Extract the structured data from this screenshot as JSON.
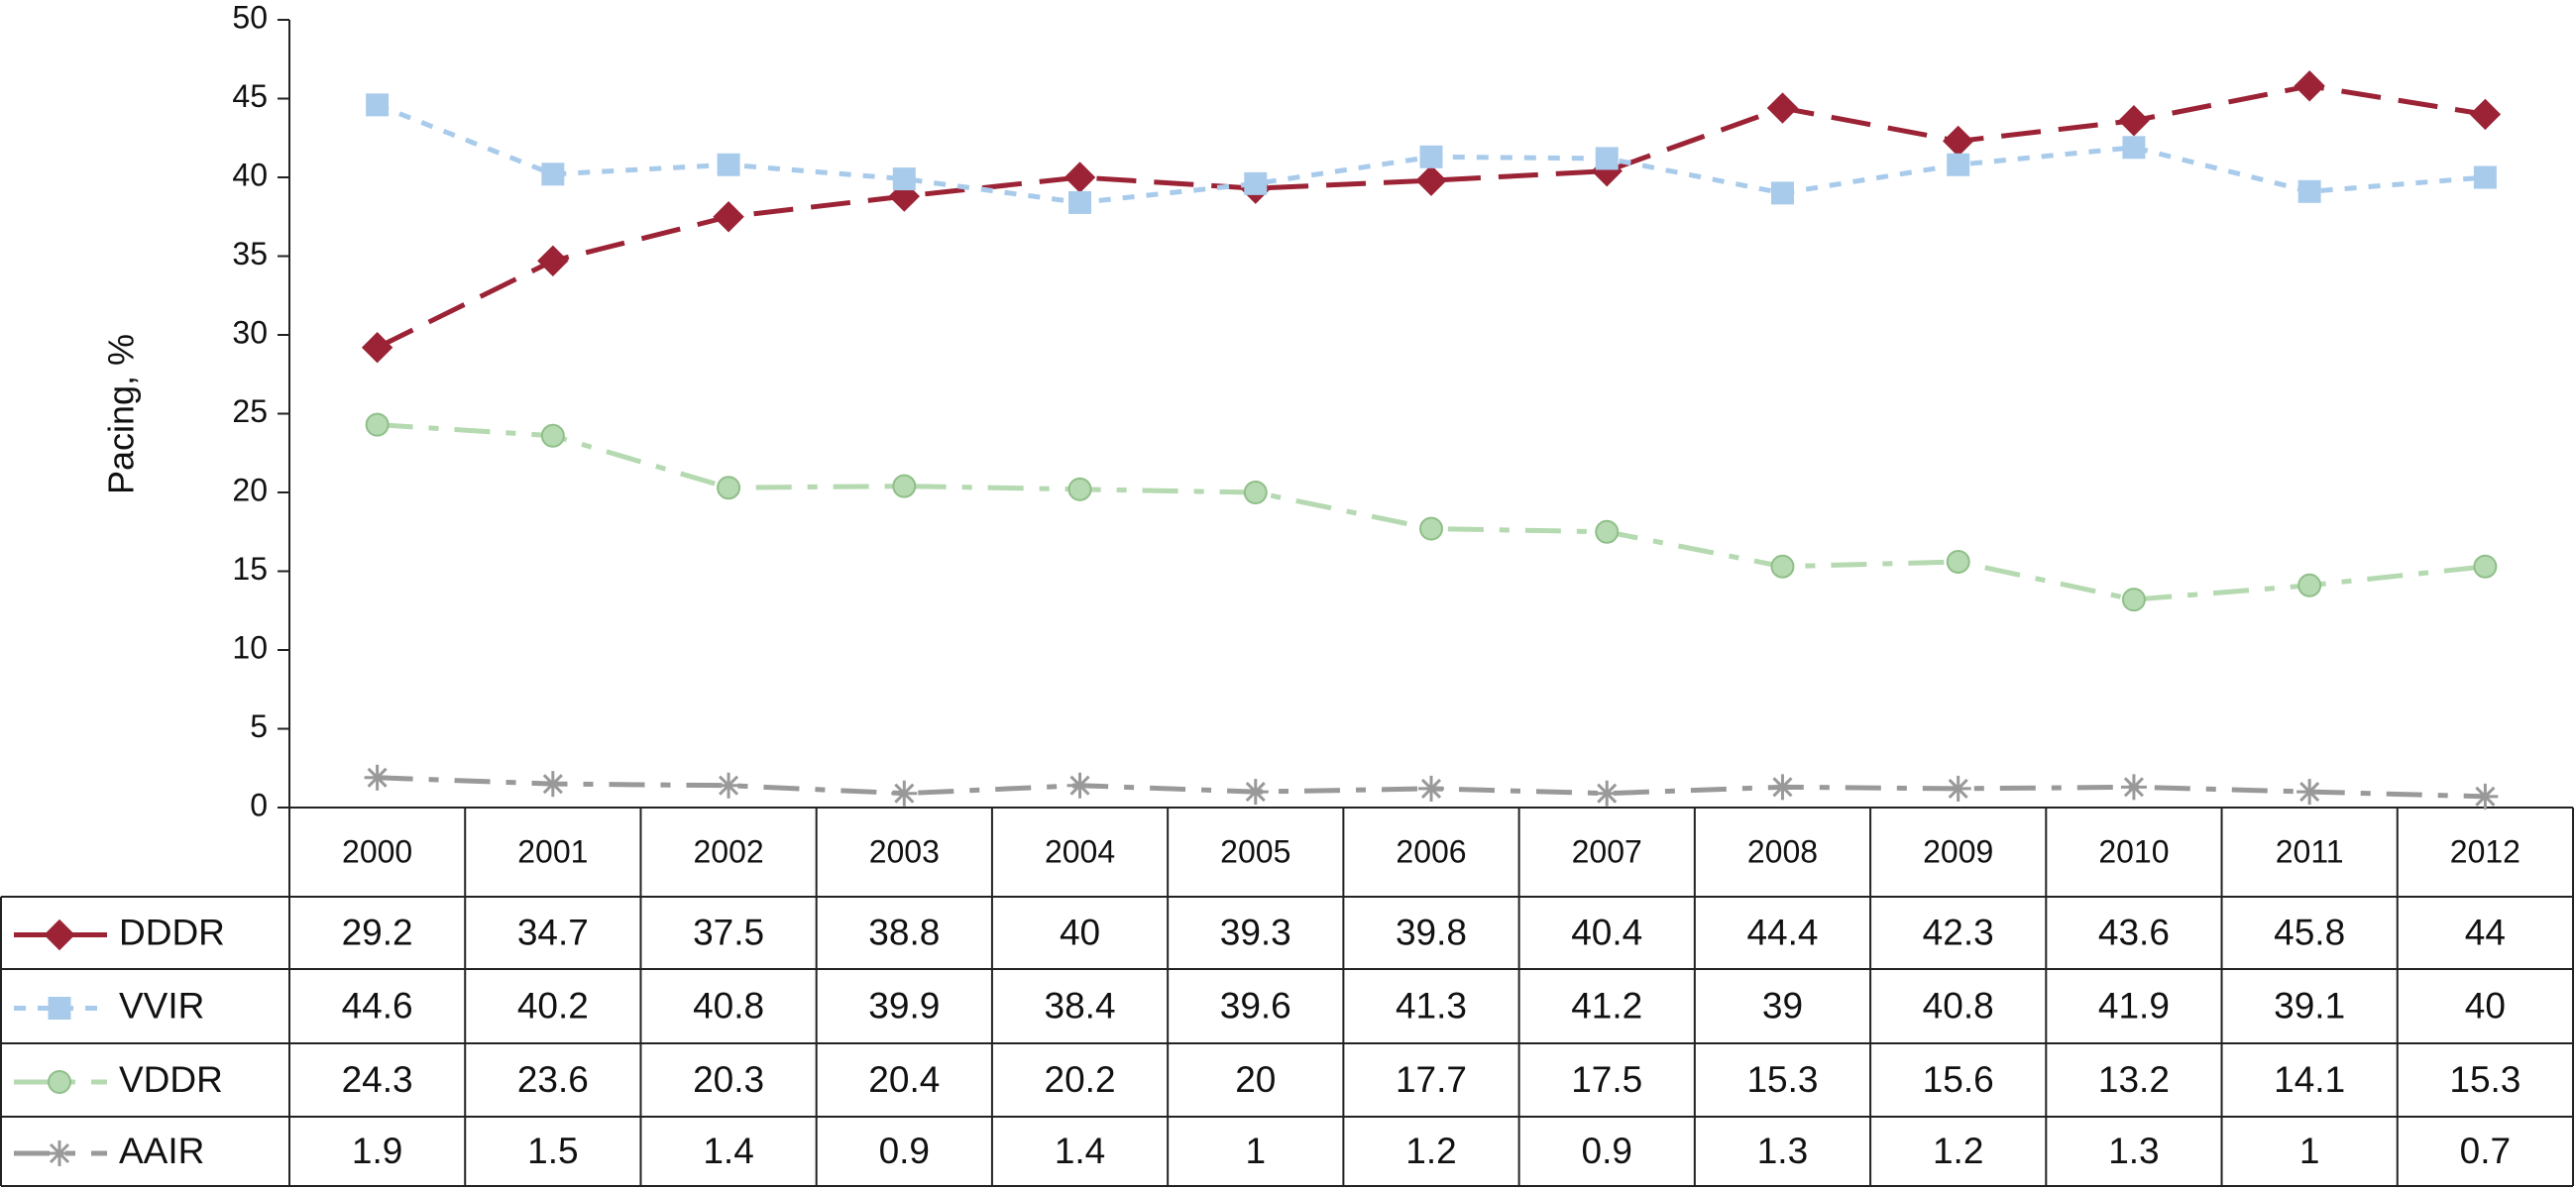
{
  "chart_data": {
    "type": "line",
    "y_label": "Pacing, %",
    "categories": [
      "2000",
      "2001",
      "2002",
      "2003",
      "2004",
      "2005",
      "2006",
      "2007",
      "2008",
      "2009",
      "2010",
      "2011",
      "2012"
    ],
    "series": [
      {
        "name": "DDDR",
        "color": "#9b2335",
        "marker": "diamond",
        "dash": "long-dash",
        "values": [
          29.2,
          34.7,
          37.5,
          38.8,
          40,
          39.3,
          39.8,
          40.4,
          44.4,
          42.3,
          43.6,
          45.8,
          44
        ]
      },
      {
        "name": "VVIR",
        "color": "#a9cbeb",
        "marker": "square",
        "dash": "short-dash",
        "values": [
          44.6,
          40.2,
          40.8,
          39.9,
          38.4,
          39.6,
          41.3,
          41.2,
          39,
          40.8,
          41.9,
          39.1,
          40
        ]
      },
      {
        "name": "VDDR",
        "color": "#b5d9b0",
        "marker": "circle",
        "dash": "dash-dot",
        "values": [
          24.3,
          23.6,
          20.3,
          20.4,
          20.2,
          20,
          17.7,
          17.5,
          15.3,
          15.6,
          13.2,
          14.1,
          15.3
        ]
      },
      {
        "name": "AAIR",
        "color": "#999999",
        "marker": "star",
        "dash": "dash-dot",
        "values": [
          1.9,
          1.5,
          1.4,
          0.9,
          1.4,
          1,
          1.2,
          0.9,
          1.3,
          1.2,
          1.3,
          1,
          0.7
        ]
      }
    ],
    "ylim": [
      0,
      50
    ],
    "yticks": [
      0,
      5,
      10,
      15,
      20,
      25,
      30,
      35,
      40,
      45,
      50
    ],
    "grid": false,
    "data_table": true
  }
}
